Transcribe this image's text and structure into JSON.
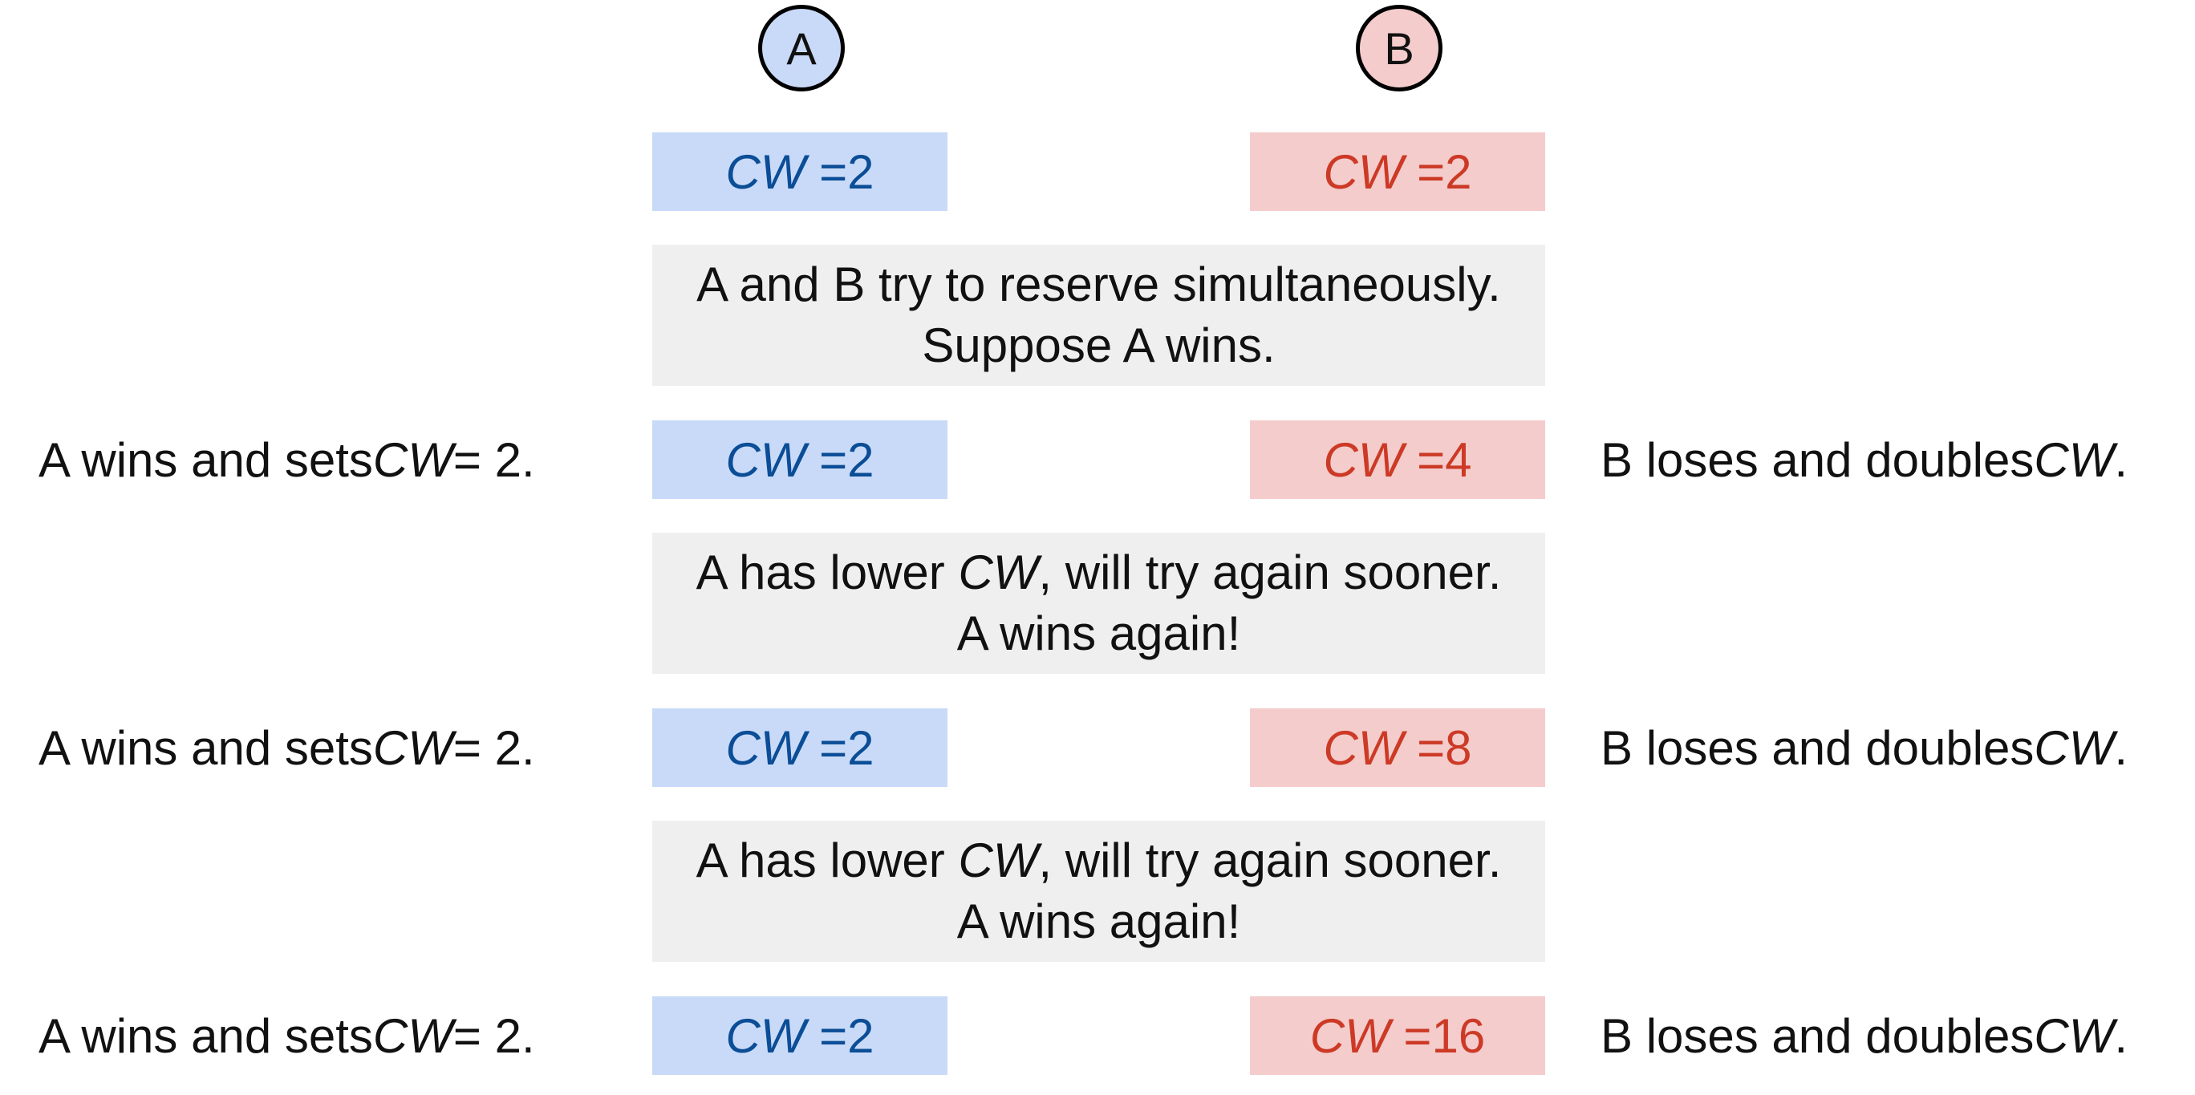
{
  "colors": {
    "a_fill": "#c9daf8",
    "a_text": "#0b4d96",
    "b_fill": "#f4cccc",
    "b_text": "#cc3a26",
    "note_fill": "#efefef"
  },
  "nodes": {
    "a": "A",
    "b": "B"
  },
  "cw_var": "CW",
  "cw_prefix_eq": "= ",
  "rows": [
    {
      "a_value": "2",
      "b_value": "2"
    },
    {
      "a_value": "2",
      "b_value": "4"
    },
    {
      "a_value": "2",
      "b_value": "8"
    },
    {
      "a_value": "2",
      "b_value": "16"
    }
  ],
  "notes": [
    {
      "line1": "A and B try to reserve simultaneously.",
      "line2": "Suppose A wins."
    },
    {
      "line1_pre": "A has lower ",
      "line1_var": "CW",
      "line1_post": ", will try again sooner.",
      "line2": "A wins again!"
    },
    {
      "line1_pre": "A has lower ",
      "line1_var": "CW",
      "line1_post": ", will try again sooner.",
      "line2": "A wins again!"
    }
  ],
  "side_left": {
    "pre": "A wins and sets ",
    "var": "CW",
    "post": " = 2."
  },
  "side_right": {
    "pre": "B loses and doubles ",
    "var": "CW",
    "post": "."
  }
}
